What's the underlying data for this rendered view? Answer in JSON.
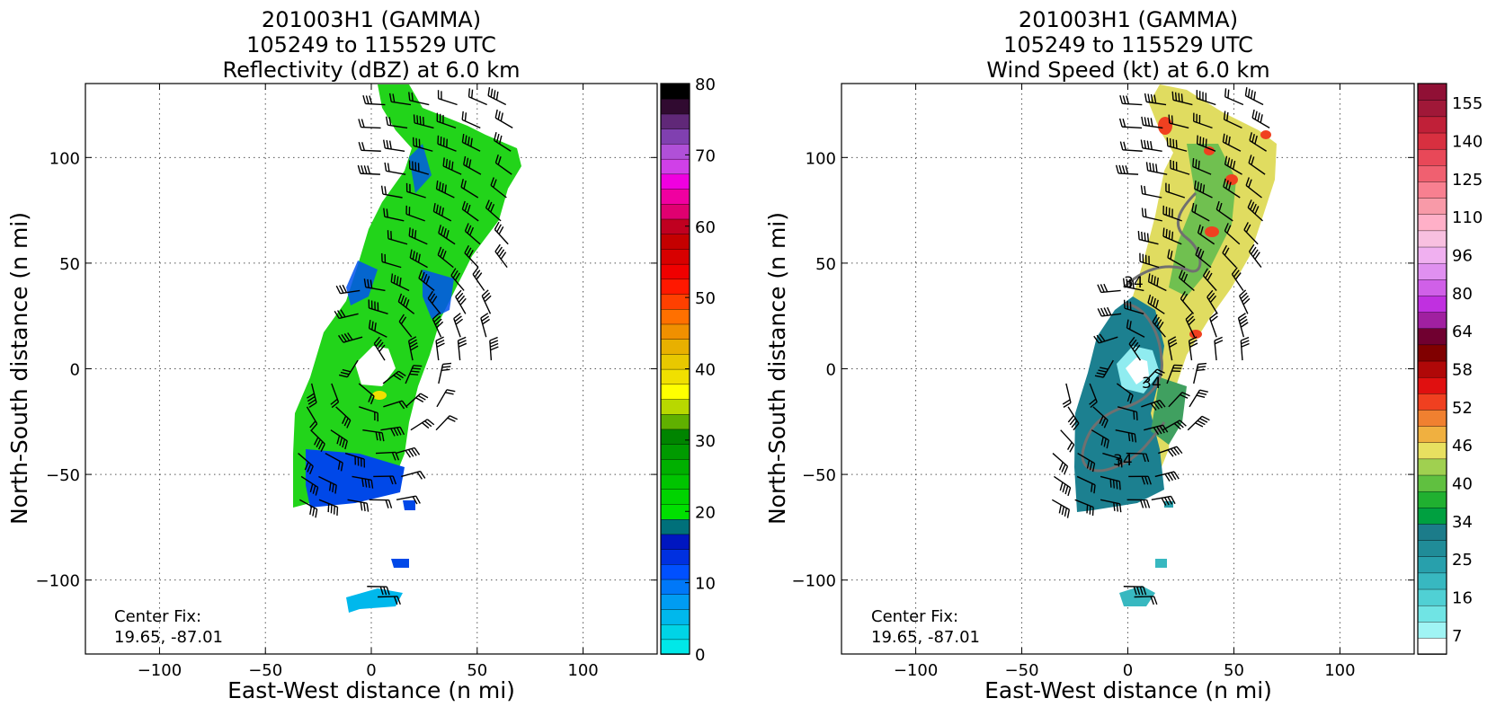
{
  "chart_data": [
    {
      "type": "heatmap",
      "title_lines": [
        "201003H1 (GAMMA)",
        "105249 to 115529 UTC",
        "Reflectivity (dBZ) at 6.0 km"
      ],
      "xlabel": "East-West distance (n mi)",
      "ylabel": "North-South distance (n mi)",
      "xlim": [
        -135,
        135
      ],
      "ylim": [
        -135,
        135
      ],
      "xticks": [
        -100,
        -50,
        0,
        50,
        100
      ],
      "yticks": [
        -100,
        -50,
        0,
        50,
        100
      ],
      "grid": true,
      "annotation_lines": [
        "Center Fix:",
        "19.65, -87.01"
      ],
      "colorbar": {
        "range": [
          0,
          80
        ],
        "tick_values": [
          0,
          10,
          20,
          30,
          40,
          50,
          60,
          70,
          80
        ],
        "tick_labels": [
          "0",
          "10",
          "20",
          "30",
          "40",
          "50",
          "60",
          "70",
          "80"
        ],
        "colors": [
          "#00e8e8",
          "#00d4e6",
          "#00b8ec",
          "#009cf2",
          "#0078f8",
          "#0050ff",
          "#0030e0",
          "#0016c0",
          "#00707a",
          "#00e000",
          "#00d400",
          "#00c400",
          "#00b000",
          "#009a00",
          "#008400",
          "#60b000",
          "#b8d800",
          "#ffff00",
          "#f0e000",
          "#e8c800",
          "#e8b000",
          "#f09000",
          "#ff7000",
          "#ff4000",
          "#ff1800",
          "#f00000",
          "#d80000",
          "#c40000",
          "#c00020",
          "#e00070",
          "#f000a0",
          "#f000e0",
          "#d040e8",
          "#b050d8",
          "#8040b0",
          "#602878",
          "#300a30",
          "#000000"
        ]
      }
    },
    {
      "type": "heatmap",
      "title_lines": [
        "201003H1 (GAMMA)",
        "105249 to 115529 UTC",
        "Wind Speed (kt) at 6.0 km"
      ],
      "xlabel": "East-West distance (n mi)",
      "ylabel": "North-South distance (n mi)",
      "xlim": [
        -135,
        135
      ],
      "ylim": [
        -135,
        135
      ],
      "xticks": [
        -100,
        -50,
        0,
        50,
        100
      ],
      "yticks": [
        -100,
        -50,
        0,
        50,
        100
      ],
      "grid": true,
      "annotation_lines": [
        "Center Fix:",
        "19.65, -87.01"
      ],
      "contour_labels": [
        "34",
        "34",
        "34"
      ],
      "colorbar": {
        "range": [
          7,
          160
        ],
        "tick_labels": [
          "7",
          "16",
          "25",
          "34",
          "40",
          "46",
          "52",
          "58",
          "64",
          "80",
          "96",
          "110",
          "125",
          "140",
          "155"
        ],
        "colors": [
          "#ffffff",
          "#a0f4f4",
          "#70e4e4",
          "#50d0d4",
          "#38b8c0",
          "#28a0ac",
          "#208c98",
          "#1c7c8a",
          "#00a040",
          "#20b030",
          "#60c040",
          "#a0d050",
          "#e8e060",
          "#f0b040",
          "#f08030",
          "#f04020",
          "#e01010",
          "#b00808",
          "#800000",
          "#700030",
          "#a020a0",
          "#c030e0",
          "#d060e8",
          "#e090f0",
          "#f0b0f0",
          "#f8c0e0",
          "#ffb0c8",
          "#f89aa8",
          "#f88090",
          "#f06070",
          "#e84858",
          "#d83040",
          "#c02038",
          "#a01838",
          "#901035"
        ]
      }
    }
  ]
}
